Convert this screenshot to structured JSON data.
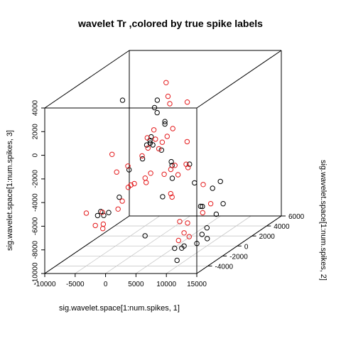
{
  "chart_data": {
    "type": "scatter",
    "projection": "3d",
    "title": "wavelet Tr ,colored by true spike labels",
    "xlabel": "sig.wavelet.space[1:num.spikes, 1]",
    "ylabel": "sig.wavelet.space[1:num.spikes, 2]",
    "zlabel": "sig.wavelet.space[1:num.spikes, 3]",
    "xlim": [
      -10000,
      15000
    ],
    "ylim": [
      -5500,
      6000
    ],
    "zlim": [
      -10000,
      4000
    ],
    "xticks": [
      "-10000",
      "-5000",
      "0",
      "5000",
      "10000",
      "15000"
    ],
    "yticks": [
      "-4000",
      "-2000",
      "0",
      "2000",
      "4000",
      "6000"
    ],
    "zticks": [
      "-10000",
      "-8000",
      "-6000",
      "-4000",
      "-2000",
      "0",
      "2000",
      "4000"
    ],
    "grid": true,
    "colors": {
      "black_label": "#000000",
      "red_label": "#e41a1c"
    },
    "series": [
      {
        "color": "#000000",
        "points": [
          [
            -10500,
            5500,
            -1
          ],
          [
            -7600,
            -300,
            -7300
          ],
          [
            -7200,
            200,
            -7500
          ],
          [
            -5600,
            1000,
            -6300
          ],
          [
            -5200,
            2000,
            -4400
          ],
          [
            -4100,
            4100,
            -2500
          ],
          [
            -3600,
            3900,
            -3100
          ],
          [
            -3700,
            3600,
            -2600
          ],
          [
            -3300,
            3300,
            -2700
          ],
          [
            -4000,
            3400,
            -2900
          ],
          [
            -4200,
            3000,
            -3900
          ],
          [
            -6500,
            300,
            -7300
          ],
          [
            -7200,
            -200,
            -7000
          ],
          [
            -2600,
            5700,
            -5600
          ],
          [
            -900,
            1900,
            900
          ],
          [
            -100,
            1600,
            600
          ],
          [
            -800,
            2200,
            1400
          ],
          [
            200,
            2400,
            -700
          ],
          [
            1900,
            1000,
            100
          ],
          [
            1100,
            1200,
            -2400
          ],
          [
            1400,
            1100,
            -6300
          ],
          [
            3800,
            300,
            -3000
          ],
          [
            5100,
            1700,
            -3800
          ],
          [
            7100,
            -2300,
            -3300
          ],
          [
            11000,
            -2500,
            -3600
          ],
          [
            13200,
            -800,
            -4200
          ],
          [
            13000,
            -1700,
            -4400
          ],
          [
            11400,
            -2000,
            -5800
          ],
          [
            12300,
            -2500,
            -5600
          ],
          [
            13900,
            -1000,
            -6000
          ],
          [
            13000,
            -1200,
            -6800
          ],
          [
            12200,
            -1800,
            -7700
          ],
          [
            12000,
            -1600,
            -8700
          ],
          [
            10900,
            -2100,
            -8900
          ],
          [
            10100,
            -3500,
            -8700
          ],
          [
            4800,
            -4100,
            -7400
          ],
          [
            12100,
            -2400,
            -8000
          ],
          [
            8700,
            -3300,
            -8800
          ],
          [
            9400,
            -2600,
            -8900
          ],
          [
            8000,
            -2400,
            -10200
          ]
        ]
      },
      {
        "color": "#e41a1c",
        "points": [
          [
            -8000,
            2000,
            -3100
          ],
          [
            -8600,
            -1000,
            -6800
          ],
          [
            -7000,
            -1100,
            -7800
          ],
          [
            -6300,
            -600,
            -7900
          ],
          [
            -5900,
            -1000,
            -8100
          ],
          [
            -5800,
            1000,
            -7300
          ],
          [
            -5600,
            1400,
            -6800
          ],
          [
            -5100,
            1800,
            -5800
          ],
          [
            -4700,
            2300,
            -5700
          ],
          [
            -3900,
            3500,
            -3200
          ],
          [
            -3400,
            4100,
            -2700
          ],
          [
            -3900,
            4300,
            -2000
          ],
          [
            -4500,
            3900,
            -2500
          ],
          [
            -5000,
            3600,
            -3900
          ],
          [
            -6000,
            2500,
            -4300
          ],
          [
            -5500,
            2500,
            -5900
          ],
          [
            -7900,
            600,
            -7400
          ],
          [
            -6400,
            1300,
            -4300
          ],
          [
            -2400,
            4200,
            -3000
          ],
          [
            -1400,
            4800,
            -2100
          ],
          [
            -3100,
            3200,
            -5200
          ],
          [
            -3600,
            3000,
            -5900
          ],
          [
            -3400,
            2700,
            -5400
          ],
          [
            400,
            2400,
            2800
          ],
          [
            600,
            2500,
            1600
          ],
          [
            2100,
            1500,
            1400
          ],
          [
            3000,
            400,
            -900
          ],
          [
            2700,
            1700,
            -3900
          ],
          [
            2500,
            400,
            -4100
          ],
          [
            1300,
            2300,
            -4500
          ],
          [
            3700,
            300,
            -5700
          ],
          [
            900,
            1000,
            -2200
          ],
          [
            6300,
            400,
            2000
          ],
          [
            6400,
            300,
            -1300
          ],
          [
            6000,
            500,
            -3300
          ],
          [
            7200,
            -1600,
            -3300
          ],
          [
            7400,
            -400,
            -3200
          ],
          [
            9600,
            -4400,
            -4000
          ],
          [
            12700,
            -1700,
            -5700
          ],
          [
            12700,
            -2800,
            -6000
          ],
          [
            10700,
            -3200,
            -6700
          ],
          [
            11100,
            -4000,
            -7200
          ],
          [
            11700,
            -3800,
            -7600
          ],
          [
            10500,
            -4100,
            -6200
          ],
          [
            10300,
            -4100,
            -7800
          ],
          [
            11700,
            -1900,
            -4000
          ]
        ]
      }
    ]
  }
}
